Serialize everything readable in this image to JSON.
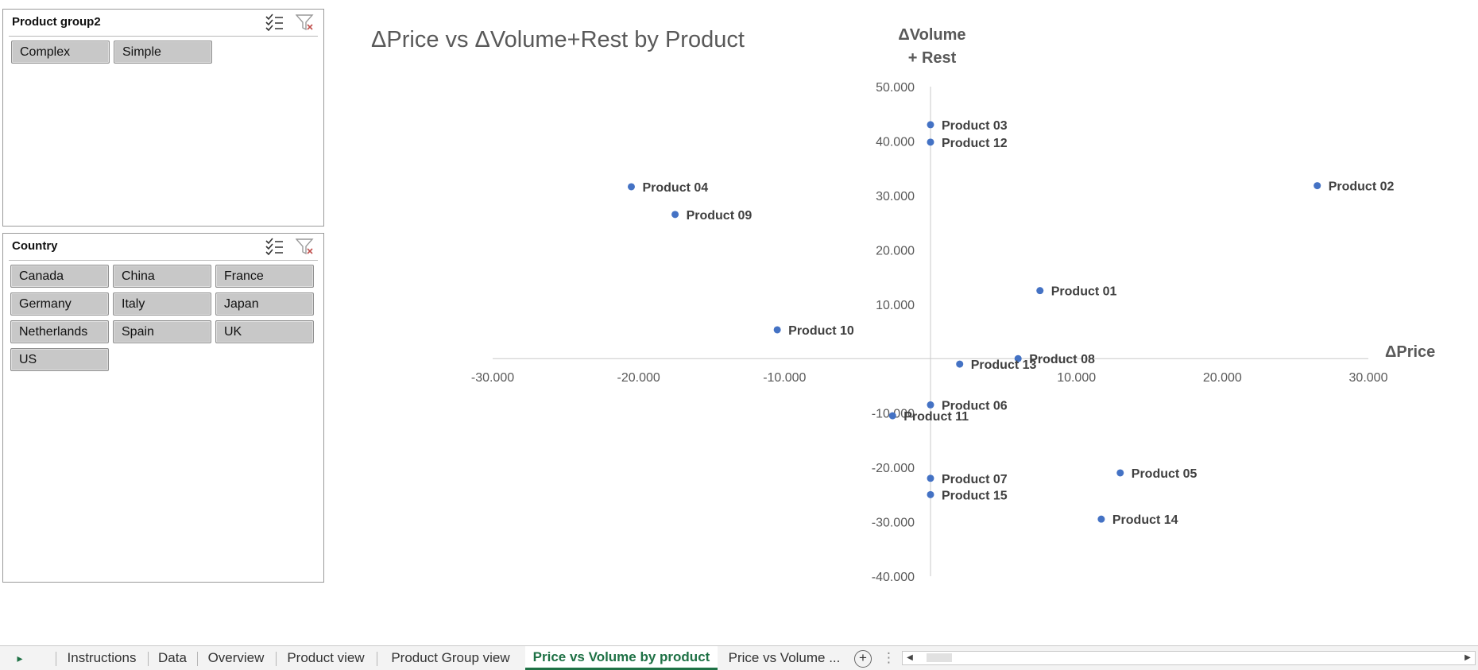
{
  "slicers": {
    "product_group": {
      "title": "Product group2",
      "items": [
        "Complex",
        "Simple"
      ]
    },
    "country": {
      "title": "Country",
      "items": [
        "Canada",
        "China",
        "France",
        "Germany",
        "Italy",
        "Japan",
        "Netherlands",
        "Spain",
        "UK",
        "US"
      ]
    },
    "icons": [
      "multi-select-icon",
      "clear-filter-icon"
    ]
  },
  "chart_data": {
    "type": "scatter",
    "title": "ΔPrice vs ΔVolume+Rest by Product",
    "xlabel": "ΔPrice",
    "ylabel_lines": [
      "ΔVolume",
      "+ Rest"
    ],
    "xlim": [
      -30000,
      30000
    ],
    "ylim": [
      -40000,
      50000
    ],
    "x_ticks": [
      -30000,
      -20000,
      -10000,
      0,
      10000,
      20000,
      30000
    ],
    "y_ticks": [
      50000,
      40000,
      30000,
      20000,
      10000,
      0,
      -10000,
      -20000,
      -30000,
      -40000
    ],
    "x_tick_labels": [
      "-30.000",
      "-20.000",
      "-10.000",
      "",
      "10.000",
      "20.000",
      "30.000"
    ],
    "y_tick_labels": [
      "50.000",
      "40.000",
      "30.000",
      "20.000",
      "10.000",
      "",
      "-10.000",
      "-20.000",
      "-30.000",
      "-40.000"
    ],
    "grid": false,
    "marker_color": "#4472c4",
    "points": [
      {
        "label": "Product 01",
        "x": 7500,
        "y": 12500
      },
      {
        "label": "Product 02",
        "x": 26500,
        "y": 31800
      },
      {
        "label": "Product 03",
        "x": 0,
        "y": 43000
      },
      {
        "label": "Product 04",
        "x": -20500,
        "y": 31600
      },
      {
        "label": "Product 05",
        "x": 13000,
        "y": -21000
      },
      {
        "label": "Product 06",
        "x": 0,
        "y": -8500
      },
      {
        "label": "Product 07",
        "x": 0,
        "y": -22000
      },
      {
        "label": "Product 08",
        "x": 6000,
        "y": 0
      },
      {
        "label": "Product 09",
        "x": -17500,
        "y": 26500
      },
      {
        "label": "Product 10",
        "x": -10500,
        "y": 5300
      },
      {
        "label": "Product 11",
        "x": -2600,
        "y": -10500
      },
      {
        "label": "Product 12",
        "x": 0,
        "y": 39800
      },
      {
        "label": "Product 13",
        "x": 2000,
        "y": -1000
      },
      {
        "label": "Product 14",
        "x": 11700,
        "y": -29500
      },
      {
        "label": "Product 15",
        "x": 0,
        "y": -25000
      }
    ]
  },
  "tabs": {
    "items": [
      "Instructions",
      "Data",
      "Overview",
      "Product view",
      "Product Group view",
      "Price vs Volume by product",
      "Price vs Volume ..."
    ],
    "active": "Price vs Volume by product",
    "add_sheet_label": "+",
    "more_label": "⋮",
    "nav_label": "▸"
  }
}
